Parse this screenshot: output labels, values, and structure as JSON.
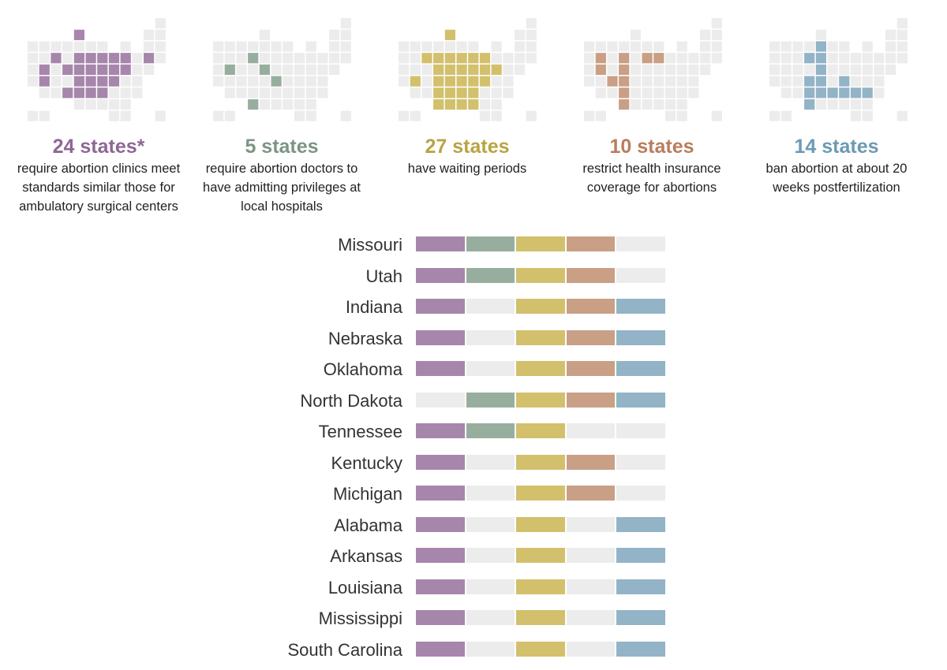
{
  "chart_data": {
    "type": "table",
    "colors": {
      "empty": "#ececec",
      "categories": [
        "#a786ac",
        "#97ae9f",
        "#d2c06c",
        "#c99f85",
        "#93b3c7"
      ],
      "count_text": [
        "#8e6796",
        "#7b9584",
        "#b8a444",
        "#b97d5c",
        "#6d9ab3"
      ]
    },
    "categories": [
      {
        "count": "24 states*",
        "description": "require abortion clinics meet standards similar those for ambulatory surgical centers"
      },
      {
        "count": "5 states",
        "description": "require abortion doctors to have admitting privileges at local hospitals"
      },
      {
        "count": "27 states",
        "description": "have waiting periods"
      },
      {
        "count": "10 states",
        "description": "restrict health insurance coverage for abortions"
      },
      {
        "count": "14 states",
        "description": "ban abortion at about 20 weeks postfertilization"
      }
    ],
    "map_grid": {
      "rows": [
        "...........x.",
        "....x.....xx.",
        "xxxxxxx.x.xx.",
        "xxxxxxxxxxxx.",
        "xxxxxxxxxxx..",
        "xxxxxxxxxx...",
        ".xxxxxxxxx...",
        "....xxxxx....",
        "xx.....xx..x."
      ],
      "highlights": [
        [
          "4,1",
          "2,3",
          "4,3",
          "5,3",
          "6,3",
          "7,3",
          "8,3",
          "10,3",
          "1,4",
          "3,4",
          "4,4",
          "5,4",
          "6,4",
          "7,4",
          "8,4",
          "1,5",
          "4,5",
          "5,5",
          "6,5",
          "7,5",
          "3,6",
          "4,6",
          "5,6",
          "6,6"
        ],
        [
          "3,3",
          "1,4",
          "4,4",
          "5,5",
          "3,7"
        ],
        [
          "4,1",
          "2,3",
          "3,3",
          "4,3",
          "5,3",
          "6,3",
          "7,3",
          "3,4",
          "4,4",
          "5,4",
          "6,4",
          "7,4",
          "8,4",
          "1,5",
          "3,5",
          "4,5",
          "5,5",
          "6,5",
          "7,5",
          "3,6",
          "4,6",
          "5,6",
          "6,6",
          "3,7",
          "4,7",
          "5,7",
          "6,7"
        ],
        [
          "1,3",
          "3,3",
          "5,3",
          "6,3",
          "1,4",
          "3,4",
          "2,5",
          "3,5",
          "3,6",
          "3,7"
        ],
        [
          "4,2",
          "3,3",
          "4,3",
          "4,4",
          "3,5",
          "4,5",
          "6,5",
          "3,6",
          "4,6",
          "5,6",
          "6,6",
          "7,6",
          "8,6",
          "3,7"
        ]
      ]
    },
    "states": [
      {
        "name": "Missouri",
        "flags": [
          1,
          1,
          1,
          1,
          0
        ]
      },
      {
        "name": "Utah",
        "flags": [
          1,
          1,
          1,
          1,
          0
        ]
      },
      {
        "name": "Indiana",
        "flags": [
          1,
          0,
          1,
          1,
          1
        ]
      },
      {
        "name": "Nebraska",
        "flags": [
          1,
          0,
          1,
          1,
          1
        ]
      },
      {
        "name": "Oklahoma",
        "flags": [
          1,
          0,
          1,
          1,
          1
        ]
      },
      {
        "name": "North Dakota",
        "flags": [
          0,
          1,
          1,
          1,
          1
        ]
      },
      {
        "name": "Tennessee",
        "flags": [
          1,
          1,
          1,
          0,
          0
        ]
      },
      {
        "name": "Kentucky",
        "flags": [
          1,
          0,
          1,
          1,
          0
        ]
      },
      {
        "name": "Michigan",
        "flags": [
          1,
          0,
          1,
          1,
          0
        ]
      },
      {
        "name": "Alabama",
        "flags": [
          1,
          0,
          1,
          0,
          1
        ]
      },
      {
        "name": "Arkansas",
        "flags": [
          1,
          0,
          1,
          0,
          1
        ]
      },
      {
        "name": "Louisiana",
        "flags": [
          1,
          0,
          1,
          0,
          1
        ]
      },
      {
        "name": "Mississippi",
        "flags": [
          1,
          0,
          1,
          0,
          1
        ]
      },
      {
        "name": "South Carolina",
        "flags": [
          1,
          0,
          1,
          0,
          1
        ]
      }
    ]
  }
}
